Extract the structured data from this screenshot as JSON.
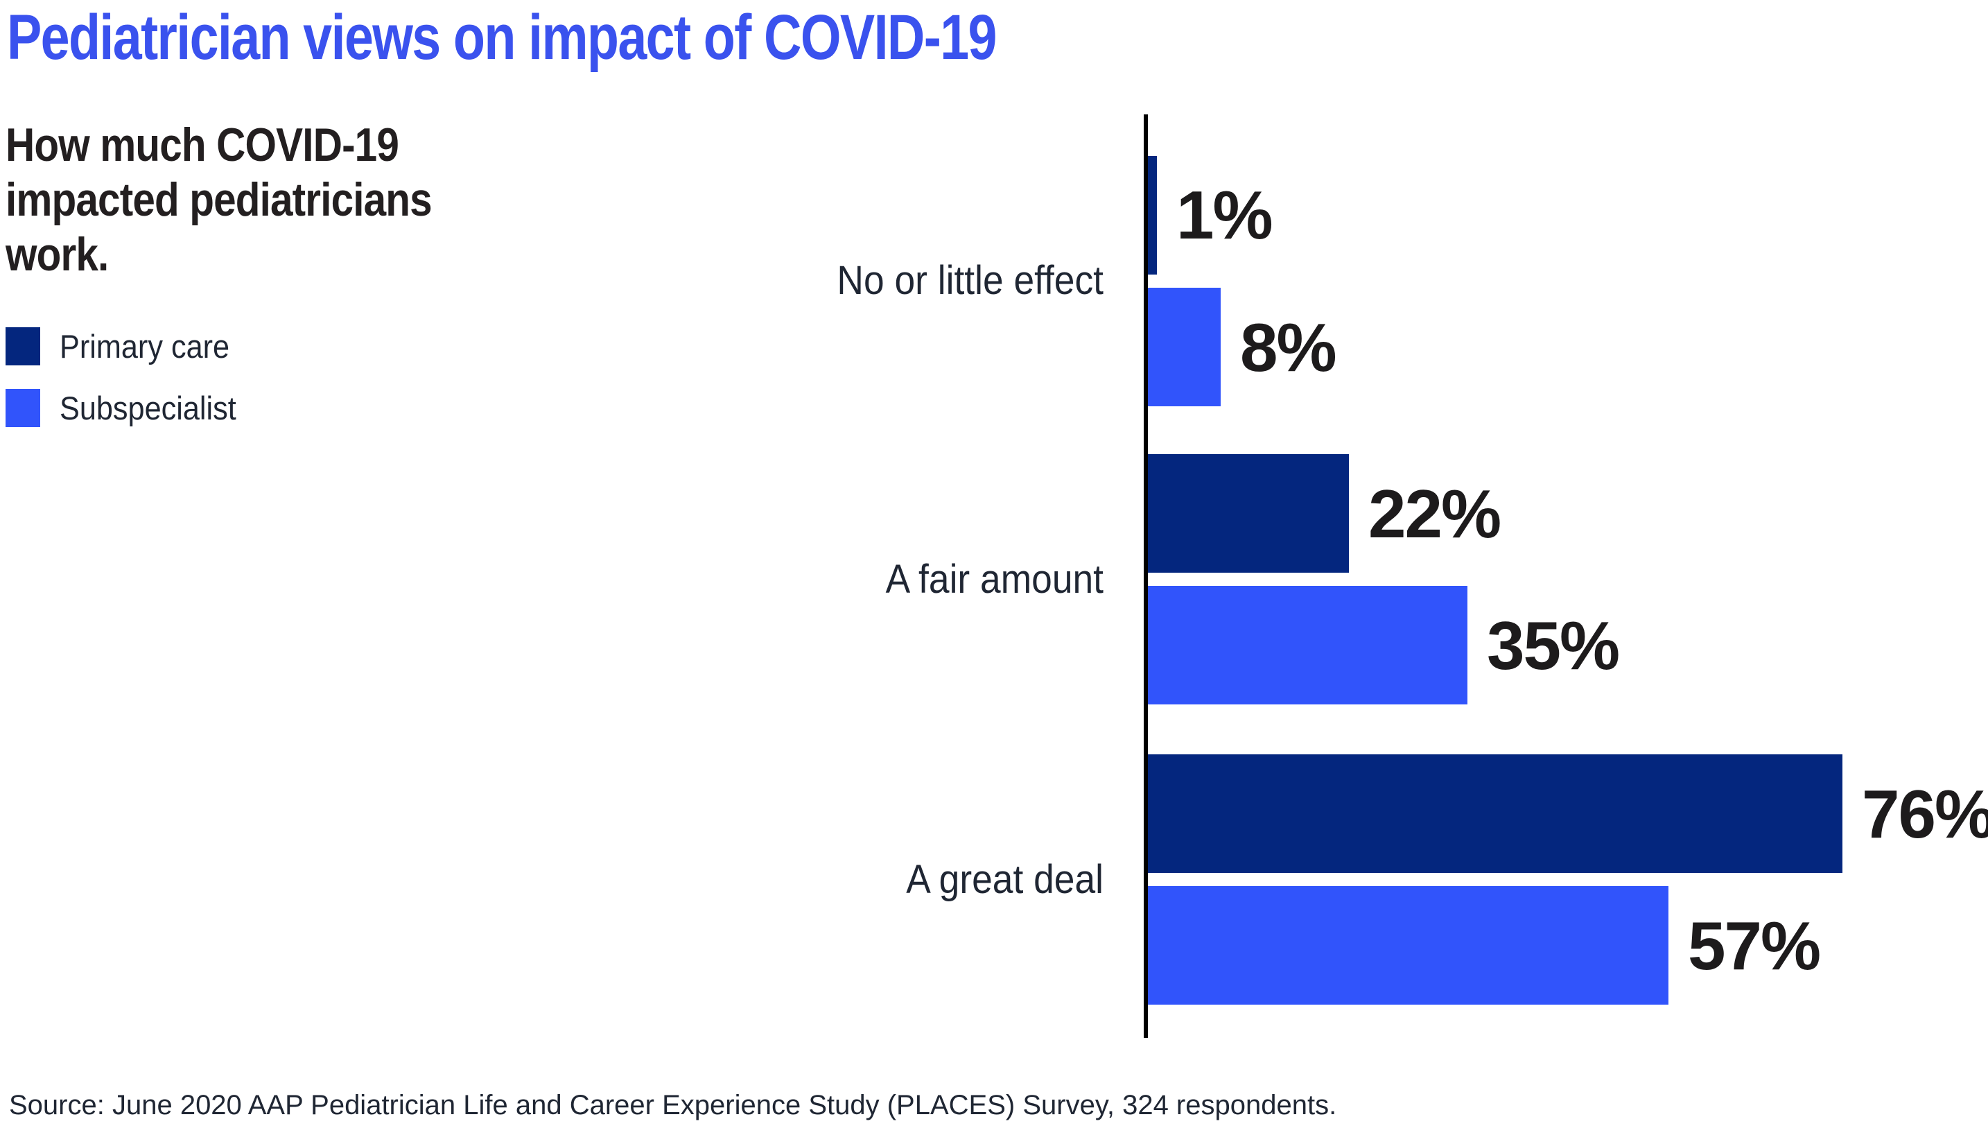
{
  "title": "Pediatrician views on impact of COVID-19",
  "subtitle": {
    "line1": "How much COVID-19",
    "line2": "impacted pediatricians",
    "line3": "work."
  },
  "chart_data": {
    "type": "bar",
    "orientation": "horizontal",
    "title": "Pediatrician views on impact of COVID-19",
    "subtitle": "How much COVID-19 impacted pediatricians work.",
    "categories": [
      "No or little effect",
      "A fair amount",
      "A great deal"
    ],
    "series": [
      {
        "name": "Primary care",
        "color": "#04267e",
        "values": [
          1,
          22,
          76
        ]
      },
      {
        "name": "Subspecialist",
        "color": "#3154fb",
        "values": [
          8,
          35,
          57
        ]
      }
    ],
    "value_suffix": "%",
    "data_labels": true,
    "grid": false,
    "legend_position": "top-left",
    "xlim": [
      0,
      92
    ]
  },
  "source": "Source: June 2020 AAP Pediatrician Life and Career Experience Study (PLACES) Survey, 324 respondents.",
  "colors": {
    "title": "#3a52ee",
    "subtitle_text": "#231f20",
    "label_text": "#1f2633",
    "value_text": "#1d1b1c",
    "axis": "#000000",
    "primary_care": "#04267e",
    "subspecialist": "#3154fb",
    "background": "#ffffff"
  }
}
